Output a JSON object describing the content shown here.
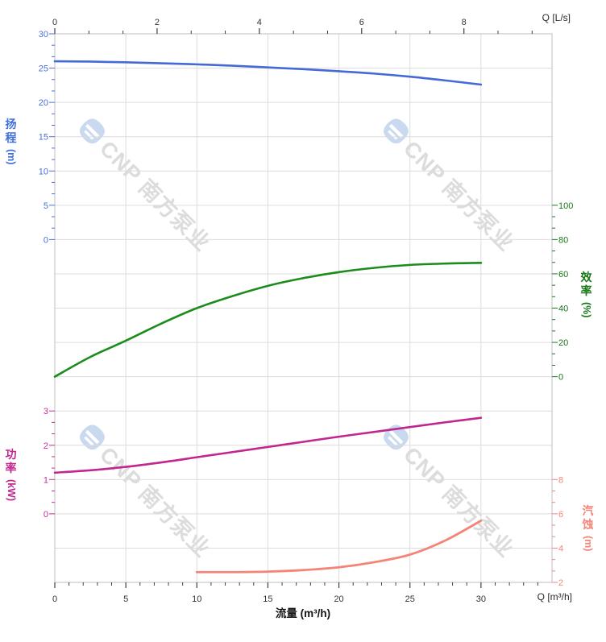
{
  "watermark": {
    "brand_text": "CNP 南方泵业",
    "text_color": "#dcdcdc",
    "logo_color": "#c9d9ef"
  },
  "chart_data": {
    "type": "line",
    "title": "",
    "grid": "on",
    "axes": {
      "x_bottom": {
        "title": "流量 (m³/h)",
        "unit_label": "Q [m³/h]",
        "min": 0,
        "max": 35,
        "major_step": 5,
        "minor_step": 1,
        "tick_labels": [
          "0",
          "5",
          "10",
          "15",
          "20",
          "25",
          "30"
        ],
        "tick_color": "#3f3f3f"
      },
      "x_top": {
        "unit_label": "Q [L/s]",
        "min": 0,
        "max": 9.72,
        "major_step": 2,
        "minor_divisions": 3,
        "tick_labels": [
          "0",
          "2",
          "4",
          "6",
          "8"
        ],
        "m3h_per_lps": 3.6,
        "tick_color": "#3f3f3f"
      },
      "y_axes": [
        {
          "id": "head",
          "side": "left",
          "title": "扬程",
          "unit": "(m)",
          "color": "#4a6fd8",
          "min": 0,
          "max": 30,
          "major_step": 5,
          "minor_divisions": 3,
          "row_of_min": 6,
          "tick_labels": [
            "0",
            "5",
            "10",
            "15",
            "20",
            "25",
            "30"
          ]
        },
        {
          "id": "efficiency",
          "side": "right",
          "title": "效率",
          "unit": "(%)",
          "color": "#187818",
          "min": 0,
          "max": 100,
          "major_step": 20,
          "minor_divisions": 3,
          "row_of_min": 10,
          "tick_labels": [
            "0",
            "20",
            "40",
            "60",
            "80",
            "100"
          ]
        },
        {
          "id": "power",
          "side": "left",
          "title": "功率",
          "unit": "(kW)",
          "color": "#c52c96",
          "min": 0,
          "max": 3,
          "major_step": 1,
          "minor_divisions": 3,
          "row_of_min": 14,
          "tick_labels": [
            "0",
            "1",
            "2",
            "3"
          ]
        },
        {
          "id": "npsh",
          "side": "right",
          "title": "汽蚀",
          "unit": "(m)",
          "color": "#f58478",
          "min": 2,
          "max": 8,
          "major_step": 2,
          "minor_divisions": 3,
          "row_of_min": 16,
          "tick_labels": [
            "2",
            "4",
            "6",
            "8"
          ]
        }
      ]
    },
    "series": [
      {
        "id": "head",
        "name": "扬程",
        "axis": "head",
        "color": "#4569d6",
        "width": 2.6,
        "points": [
          [
            0,
            26.0
          ],
          [
            2.5,
            25.95
          ],
          [
            5,
            25.85
          ],
          [
            7.5,
            25.7
          ],
          [
            10,
            25.55
          ],
          [
            12.5,
            25.35
          ],
          [
            15,
            25.1
          ],
          [
            17.5,
            24.85
          ],
          [
            20,
            24.55
          ],
          [
            22.5,
            24.2
          ],
          [
            25,
            23.75
          ],
          [
            27.5,
            23.2
          ],
          [
            30,
            22.6
          ]
        ]
      },
      {
        "id": "efficiency",
        "name": "效率",
        "axis": "efficiency",
        "color": "#1c8c1c",
        "width": 2.6,
        "points": [
          [
            0,
            0
          ],
          [
            2.5,
            11.5
          ],
          [
            5,
            21
          ],
          [
            7.5,
            31
          ],
          [
            10,
            40
          ],
          [
            12.5,
            47
          ],
          [
            15,
            53
          ],
          [
            17.5,
            57.5
          ],
          [
            20,
            61
          ],
          [
            22.5,
            63.5
          ],
          [
            25,
            65.2
          ],
          [
            27.5,
            66
          ],
          [
            30,
            66.4
          ]
        ]
      },
      {
        "id": "power",
        "name": "功率",
        "axis": "power",
        "color": "#c02790",
        "width": 2.6,
        "points": [
          [
            0,
            1.2
          ],
          [
            2.5,
            1.27
          ],
          [
            5,
            1.37
          ],
          [
            7.5,
            1.5
          ],
          [
            10,
            1.65
          ],
          [
            12.5,
            1.8
          ],
          [
            15,
            1.95
          ],
          [
            17.5,
            2.1
          ],
          [
            20,
            2.25
          ],
          [
            22.5,
            2.39
          ],
          [
            25,
            2.53
          ],
          [
            27.5,
            2.67
          ],
          [
            30,
            2.8
          ]
        ]
      },
      {
        "id": "npsh",
        "name": "汽蚀",
        "axis": "npsh",
        "color": "#f58478",
        "width": 2.8,
        "points": [
          [
            10,
            2.6
          ],
          [
            12.5,
            2.6
          ],
          [
            15,
            2.63
          ],
          [
            17.5,
            2.72
          ],
          [
            20,
            2.88
          ],
          [
            22.5,
            3.18
          ],
          [
            25,
            3.62
          ],
          [
            27.5,
            4.45
          ],
          [
            30,
            5.6
          ]
        ]
      }
    ]
  }
}
